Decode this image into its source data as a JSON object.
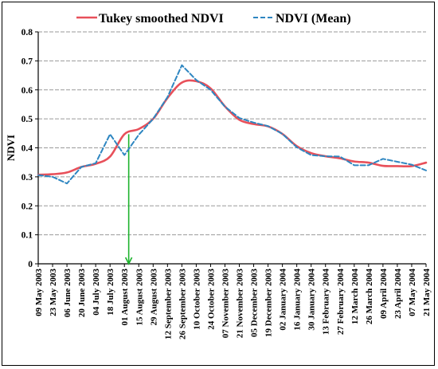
{
  "chart_data": {
    "type": "line",
    "title": "",
    "xlabel": "",
    "ylabel": "NDVI",
    "ylim": [
      0,
      0.8
    ],
    "yticks": [
      "0",
      "0.1",
      "0.2",
      "0.3",
      "0.4",
      "0.5",
      "0.6",
      "0.7",
      "0.8"
    ],
    "categories": [
      "09 May 2003",
      "23 May 2003",
      "06 June 2003",
      "20 June 2003",
      "04 July 2003",
      "18 July 2003",
      "01 August 2003",
      "15 August 2003",
      "29 August 2003",
      "12 September 2003",
      "26 September 2003",
      "10 October 2003",
      "24 October 2003",
      "07 November 2003",
      "21 November 2003",
      "05 December 2003",
      "19 December 2003",
      "02 January 2004",
      "16 January 2004",
      "30 January 2004",
      "13 February 2004",
      "27 February 2004",
      "12 March 2004",
      "26 March 2004",
      "09 April 2004",
      "23 April 2004",
      "07 May 2004",
      "21 May 2004"
    ],
    "grid": true,
    "legend_position": "top",
    "series": [
      {
        "name": "Tukey smoothed NDVI",
        "color": "#e8505a",
        "style": "solid",
        "values": [
          0.307,
          0.309,
          0.315,
          0.334,
          0.345,
          0.37,
          0.447,
          0.465,
          0.5,
          0.572,
          0.625,
          0.63,
          0.605,
          0.543,
          0.497,
          0.482,
          0.474,
          0.448,
          0.406,
          0.382,
          0.371,
          0.364,
          0.353,
          0.349,
          0.338,
          0.337,
          0.337,
          0.349
        ]
      },
      {
        "name": "NDVI (Mean)",
        "color": "#2e86c1",
        "style": "dashed",
        "values": [
          0.306,
          0.3,
          0.277,
          0.334,
          0.347,
          0.447,
          0.375,
          0.445,
          0.5,
          0.575,
          0.685,
          0.634,
          0.6,
          0.542,
          0.503,
          0.487,
          0.475,
          0.448,
          0.402,
          0.375,
          0.371,
          0.37,
          0.34,
          0.34,
          0.362,
          0.352,
          0.342,
          0.322
        ]
      }
    ],
    "annotation": {
      "type": "arrow",
      "color": "#1db32d",
      "x_index": 6.3,
      "from_y": 0.447,
      "to_y": 0
    }
  }
}
